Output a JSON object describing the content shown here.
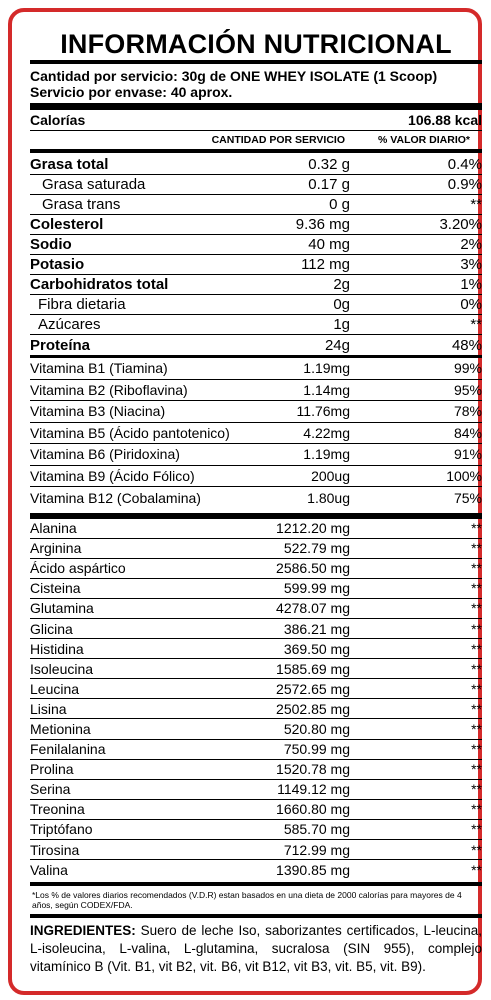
{
  "title": "INFORMACIÓN NUTRICIONAL",
  "serving": {
    "line1": "Cantidad por servicio: 30g de ONE WHEY ISOLATE (1 Scoop)",
    "line2": "Servicio por envase: 40 aprox."
  },
  "calories": {
    "label": "Calorías",
    "value": "106.88 kcal"
  },
  "header": {
    "amount": "CANTIDAD POR SERVICIO",
    "dv": "% VALOR DIARIO*"
  },
  "nutrients": [
    {
      "name": "Grasa total",
      "amount": "0.32 g",
      "dv": "0.4%"
    },
    {
      "name": "Grasa saturada",
      "amount": "0.17 g",
      "dv": "0.9%"
    },
    {
      "name": "Grasa trans",
      "amount": "0 g",
      "dv": "**"
    },
    {
      "name": "Colesterol",
      "amount": "9.36 mg",
      "dv": "3.20%"
    },
    {
      "name": "Sodio",
      "amount": "40 mg",
      "dv": "2%"
    },
    {
      "name": "Potasio",
      "amount": "112 mg",
      "dv": "3%"
    },
    {
      "name": "Carbohidratos total",
      "amount": "2g",
      "dv": "1%"
    },
    {
      "name": "Fibra dietaria",
      "amount": "0g",
      "dv": "0%"
    },
    {
      "name": "Azúcares",
      "amount": "1g",
      "dv": "**"
    },
    {
      "name": "Proteína",
      "amount": "24g",
      "dv": "48%"
    }
  ],
  "vitamins": [
    {
      "name": "Vitamina B1 (Tiamina)",
      "amount": "1.19mg",
      "dv": "99%"
    },
    {
      "name": "Vitamina B2 (Riboflavina)",
      "amount": "1.14mg",
      "dv": "95%"
    },
    {
      "name": "Vitamina B3 (Niacina)",
      "amount": "11.76mg",
      "dv": "78%"
    },
    {
      "name": "Vitamina B5 (Ácido pantotenico)",
      "amount": "4.22mg",
      "dv": "84%"
    },
    {
      "name": "Vitamina B6 (Piridoxina)",
      "amount": "1.19mg",
      "dv": "91%"
    },
    {
      "name": "Vitamina B9 (Ácido Fólico)",
      "amount": "200ug",
      "dv": "100%"
    },
    {
      "name": "Vitamina B12 (Cobalamina)",
      "amount": "1.80ug",
      "dv": "75%"
    }
  ],
  "aminoacids": [
    {
      "name": "Alanina",
      "amount": "1212.20 mg",
      "dv": "**"
    },
    {
      "name": "Arginina",
      "amount": "522.79 mg",
      "dv": "**"
    },
    {
      "name": "Ácido aspártico",
      "amount": "2586.50 mg",
      "dv": "**"
    },
    {
      "name": "Cisteina",
      "amount": "599.99 mg",
      "dv": "**"
    },
    {
      "name": "Glutamina",
      "amount": "4278.07 mg",
      "dv": "**"
    },
    {
      "name": "Glicina",
      "amount": "386.21 mg",
      "dv": "**"
    },
    {
      "name": "Histidina",
      "amount": "369.50 mg",
      "dv": "**"
    },
    {
      "name": "Isoleucina",
      "amount": "1585.69 mg",
      "dv": "**"
    },
    {
      "name": "Leucina",
      "amount": "2572.65 mg",
      "dv": "**"
    },
    {
      "name": "Lisina",
      "amount": "2502.85 mg",
      "dv": "**"
    },
    {
      "name": "Metionina",
      "amount": "520.80 mg",
      "dv": "**"
    },
    {
      "name": "Fenilalanina",
      "amount": "750.99 mg",
      "dv": "**"
    },
    {
      "name": "Prolina",
      "amount": "1520.78 mg",
      "dv": "**"
    },
    {
      "name": "Serina",
      "amount": "1149.12 mg",
      "dv": "**"
    },
    {
      "name": "Treonina",
      "amount": "1660.80 mg",
      "dv": "**"
    },
    {
      "name": "Triptófano",
      "amount": "585.70 mg",
      "dv": "**"
    },
    {
      "name": "Tirosina",
      "amount": "712.99 mg",
      "dv": "**"
    },
    {
      "name": "Valina",
      "amount": "1390.85 mg",
      "dv": "**"
    }
  ],
  "footnote": "*Los % de valores diarios recomendados (V.D.R) estan basados en una dieta de 2000 calorías para mayores de 4 años, según CODEX/FDA.",
  "ingredients": {
    "label": "INGREDIENTES:",
    "text": " Suero de leche Iso, saborizantes certificados, L-leucina, L-isoleucina, L-valina, L-glutamina, sucralosa (SIN 955), complejo vitamínico B (Vit. B1, vit B2, vit. B6, vit B12, vit B3, vit. B5, vit. B9)."
  },
  "colors": {
    "border": "#d42a2a",
    "text": "#000000"
  }
}
